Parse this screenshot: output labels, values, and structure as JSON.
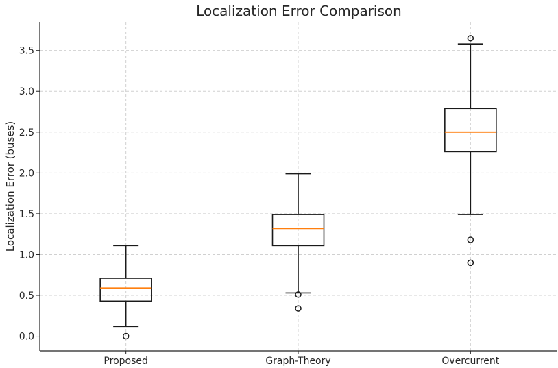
{
  "chart_data": {
    "type": "box",
    "title": "Localization Error Comparison",
    "xlabel": "",
    "ylabel": "Localization Error (buses)",
    "ylim": [
      -0.18,
      3.85
    ],
    "yticks": [
      0.0,
      0.5,
      1.0,
      1.5,
      2.0,
      2.5,
      3.0,
      3.5
    ],
    "ytick_labels": [
      "0.0",
      "0.5",
      "1.0",
      "1.5",
      "2.0",
      "2.5",
      "3.0",
      "3.5"
    ],
    "grid": true,
    "categories": [
      "Proposed",
      "Graph-Theory",
      "Overcurrent"
    ],
    "boxes": [
      {
        "whisker_low": 0.12,
        "q1": 0.43,
        "median": 0.59,
        "q3": 0.71,
        "whisker_high": 1.11,
        "fliers": [
          0.0
        ]
      },
      {
        "whisker_low": 0.53,
        "q1": 1.11,
        "median": 1.32,
        "q3": 1.49,
        "whisker_high": 1.99,
        "fliers": [
          0.51,
          0.34
        ]
      },
      {
        "whisker_low": 1.49,
        "q1": 2.26,
        "median": 2.5,
        "q3": 2.79,
        "whisker_high": 3.58,
        "fliers": [
          3.65,
          1.18,
          0.9
        ]
      }
    ],
    "colors": {
      "box": "#1a1a1a",
      "median": "#ff7f0e"
    }
  }
}
